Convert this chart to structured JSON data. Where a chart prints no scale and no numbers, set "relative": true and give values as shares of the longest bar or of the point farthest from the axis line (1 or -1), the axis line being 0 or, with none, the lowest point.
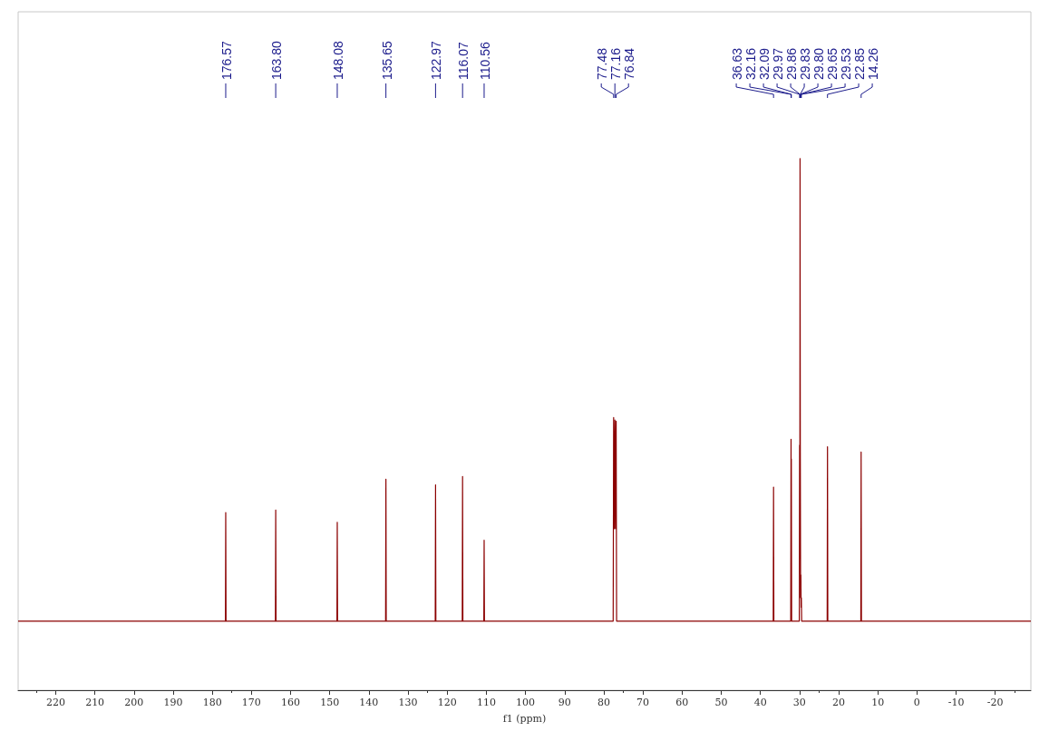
{
  "chart_data": {
    "type": "line",
    "relative": true,
    "xlabel": "f1 (ppm)",
    "xlim": [
      229.6,
      -29.1
    ],
    "xticks": [
      220,
      210,
      200,
      190,
      180,
      170,
      160,
      150,
      140,
      130,
      120,
      110,
      100,
      90,
      80,
      70,
      60,
      50,
      40,
      30,
      20,
      10,
      0,
      -10,
      -20
    ],
    "grid": false,
    "marker": "none",
    "line_style": "solid",
    "tick_labels": "x",
    "series": [
      {
        "color": "#8b0000",
        "x": [
          229.6,
          176.65,
          176.57,
          176.49,
          163.88,
          163.8,
          163.72,
          148.16,
          148.08,
          148.0,
          135.73,
          135.65,
          135.57,
          123.05,
          122.97,
          122.89,
          116.15,
          116.07,
          115.99,
          110.64,
          110.56,
          110.48,
          77.6,
          77.48,
          77.32,
          77.16,
          77.0,
          76.84,
          76.72,
          36.71,
          36.63,
          36.55,
          32.24,
          32.16,
          32.12,
          32.09,
          32.01,
          30.05,
          29.97,
          29.9,
          29.86,
          29.83,
          29.8,
          29.72,
          29.65,
          29.59,
          29.53,
          29.45,
          22.93,
          22.85,
          22.77,
          14.34,
          14.26,
          14.18,
          -29.1
        ],
        "values": [
          0.13,
          0.13,
          0.334,
          0.13,
          0.13,
          0.339,
          0.13,
          0.13,
          0.316,
          0.13,
          0.13,
          0.397,
          0.13,
          0.13,
          0.386,
          0.13,
          0.13,
          0.402,
          0.13,
          0.13,
          0.282,
          0.13,
          0.13,
          0.513,
          0.304,
          0.508,
          0.304,
          0.506,
          0.13,
          0.13,
          0.382,
          0.13,
          0.13,
          0.472,
          0.304,
          0.435,
          0.13,
          0.13,
          0.461,
          0.391,
          1.0,
          0.709,
          0.461,
          0.174,
          0.217,
          0.156,
          0.174,
          0.13,
          0.13,
          0.458,
          0.13,
          0.13,
          0.448,
          0.13,
          0.13
        ]
      }
    ],
    "annotations": [
      {
        "text": "176.57",
        "x": 176.57
      },
      {
        "text": "163.80",
        "x": 163.8
      },
      {
        "text": "148.08",
        "x": 148.08
      },
      {
        "text": "135.65",
        "x": 135.65
      },
      {
        "text": "122.97",
        "x": 122.97
      },
      {
        "text": "116.07",
        "x": 116.07
      },
      {
        "text": "110.56",
        "x": 110.56
      },
      {
        "text": "77.48",
        "x": 77.48
      },
      {
        "text": "77.16",
        "x": 77.16
      },
      {
        "text": "76.84",
        "x": 76.84
      },
      {
        "text": "36.63",
        "x": 36.63
      },
      {
        "text": "32.16",
        "x": 32.16
      },
      {
        "text": "32.09",
        "x": 32.09
      },
      {
        "text": "29.97",
        "x": 29.97
      },
      {
        "text": "29.86",
        "x": 29.86
      },
      {
        "text": "29.83",
        "x": 29.83
      },
      {
        "text": "29.80",
        "x": 29.8
      },
      {
        "text": "29.65",
        "x": 29.65
      },
      {
        "text": "29.53",
        "x": 29.53
      },
      {
        "text": "22.85",
        "x": 22.85
      },
      {
        "text": "14.26",
        "x": 14.26
      }
    ]
  }
}
